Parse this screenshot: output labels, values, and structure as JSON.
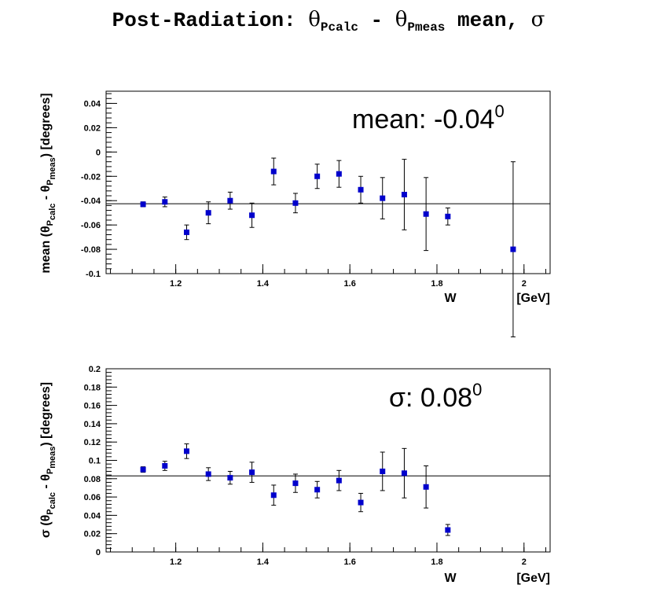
{
  "title": {
    "prefix": "Post-Radiation: ",
    "theta1": "θ",
    "sub1": "P",
    "sub1b": "calc",
    "mid": " - ",
    "theta2": "θ",
    "sub2": "P",
    "sub2b": "meas",
    "suffix": " mean, ",
    "sigma": "σ"
  },
  "chart_data": [
    {
      "type": "scatter",
      "name": "mean",
      "xlabel": "W",
      "xunit": "[GeV]",
      "ylabel": {
        "pre": "mean (θ",
        "s1": "P",
        "s1b": "calc",
        "mid": " - θ",
        "s2": "P",
        "s2b": "meas",
        "post": ")",
        "unit": "[degrees]"
      },
      "xlim": [
        1.04,
        2.06
      ],
      "ylim": [
        -0.1,
        0.05
      ],
      "xticks": [
        1.2,
        1.4,
        1.6,
        1.8,
        2
      ],
      "xtick_labels": [
        "1.2",
        "1.4",
        "1.6",
        "1.8",
        "2"
      ],
      "yticks": [
        -0.1,
        -0.08,
        -0.06,
        -0.04,
        -0.02,
        0,
        0.02,
        0.04
      ],
      "ytick_labels": [
        "-0.1",
        "-0.08",
        "-0.06",
        "-0.04",
        "-0.02",
        "0",
        "0.02",
        "0.04"
      ],
      "fit_line": -0.0425,
      "annotation": {
        "text": "mean: -0.04",
        "sup": "0"
      },
      "color": "#0000cc",
      "x": [
        1.125,
        1.175,
        1.225,
        1.275,
        1.325,
        1.375,
        1.425,
        1.475,
        1.525,
        1.575,
        1.625,
        1.675,
        1.725,
        1.775,
        1.825,
        1.975
      ],
      "y": [
        -0.043,
        -0.041,
        -0.066,
        -0.05,
        -0.04,
        -0.052,
        -0.016,
        -0.042,
        -0.02,
        -0.018,
        -0.031,
        -0.038,
        -0.035,
        -0.051,
        -0.053,
        -0.08
      ],
      "yerr": [
        0.002,
        0.004,
        0.006,
        0.009,
        0.007,
        0.01,
        0.011,
        0.008,
        0.01,
        0.011,
        0.011,
        0.017,
        0.029,
        0.03,
        0.007,
        0.072
      ]
    },
    {
      "type": "scatter",
      "name": "sigma",
      "xlabel": "W",
      "xunit": "[GeV]",
      "ylabel": {
        "pre": "σ (θ",
        "s1": "P",
        "s1b": "calc",
        "mid": " - θ",
        "s2": "P",
        "s2b": "meas",
        "post": ")",
        "unit": "[degrees]"
      },
      "xlim": [
        1.04,
        2.06
      ],
      "ylim": [
        0,
        0.2
      ],
      "xticks": [
        1.2,
        1.4,
        1.6,
        1.8,
        2
      ],
      "xtick_labels": [
        "1.2",
        "1.4",
        "1.6",
        "1.8",
        "2"
      ],
      "yticks": [
        0,
        0.02,
        0.04,
        0.06,
        0.08,
        0.1,
        0.12,
        0.14,
        0.16,
        0.18,
        0.2
      ],
      "ytick_labels": [
        "0",
        "0.02",
        "0.04",
        "0.06",
        "0.08",
        "0.1",
        "0.12",
        "0.14",
        "0.16",
        "0.18",
        "0.2"
      ],
      "fit_line": 0.083,
      "annotation": {
        "text": "σ: 0.08",
        "sup": "0"
      },
      "color": "#0000cc",
      "x": [
        1.125,
        1.175,
        1.225,
        1.275,
        1.325,
        1.375,
        1.425,
        1.475,
        1.525,
        1.575,
        1.625,
        1.675,
        1.725,
        1.775,
        1.825
      ],
      "y": [
        0.09,
        0.094,
        0.11,
        0.085,
        0.081,
        0.087,
        0.062,
        0.075,
        0.068,
        0.078,
        0.054,
        0.088,
        0.086,
        0.071,
        0.024
      ],
      "yerr": [
        0.003,
        0.005,
        0.008,
        0.007,
        0.007,
        0.011,
        0.011,
        0.01,
        0.009,
        0.011,
        0.01,
        0.021,
        0.027,
        0.023,
        0.006
      ]
    }
  ]
}
